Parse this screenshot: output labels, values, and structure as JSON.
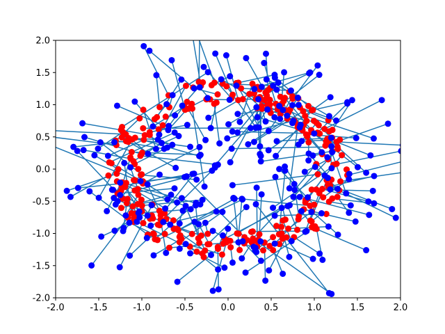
{
  "chart_data": {
    "type": "scatter",
    "title": "",
    "xlabel": "",
    "ylabel": "",
    "xlim": [
      -2.0,
      2.0
    ],
    "ylim": [
      -2.0,
      2.0
    ],
    "grid": false,
    "legend": "none",
    "x_ticks": [
      "-2.0",
      "-1.5",
      "-1.0",
      "-0.5",
      "0.0",
      "0.5",
      "1.0",
      "1.5",
      "2.0"
    ],
    "y_ticks": [
      "-2.0",
      "-1.5",
      "-1.0",
      "-0.5",
      "0.0",
      "0.5",
      "1.0",
      "1.5",
      "2.0"
    ],
    "series": [
      {
        "role": "source points (annulus, radius ~1.0–1.4)",
        "color": "#ff0000",
        "point_count": 300,
        "radius_range": [
          1.0,
          1.4
        ]
      },
      {
        "role": "transformed points",
        "color": "#0000ff",
        "point_count": 300
      }
    ],
    "connector_color": "#1f77b4",
    "connector_description": "each red point is connected by a line segment to its corresponding blue point"
  }
}
